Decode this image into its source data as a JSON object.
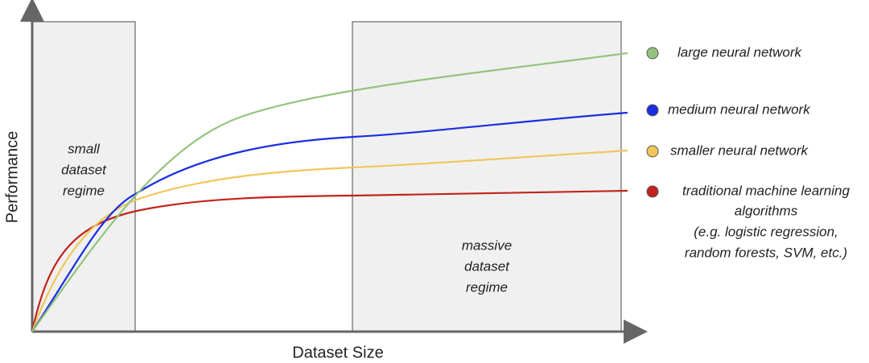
{
  "axes": {
    "y_label": "Performance",
    "x_label": "Dataset Size"
  },
  "regions": [
    {
      "label": [
        "small",
        "dataset",
        "regime"
      ]
    },
    {
      "label": [
        "massive",
        "dataset",
        "regime"
      ]
    }
  ],
  "legend": [
    {
      "name": [
        "large neural network"
      ],
      "color": "#93c47d"
    },
    {
      "name": [
        "medium neural network"
      ],
      "color": "#1a2ee0"
    },
    {
      "name": [
        "smaller neural network"
      ],
      "color": "#f1c65a"
    },
    {
      "name": [
        "traditional machine learning",
        "algorithms",
        "(e.g. logistic regression,",
        "random forests, SVM, etc.)"
      ],
      "color": "#c0241c"
    }
  ]
}
